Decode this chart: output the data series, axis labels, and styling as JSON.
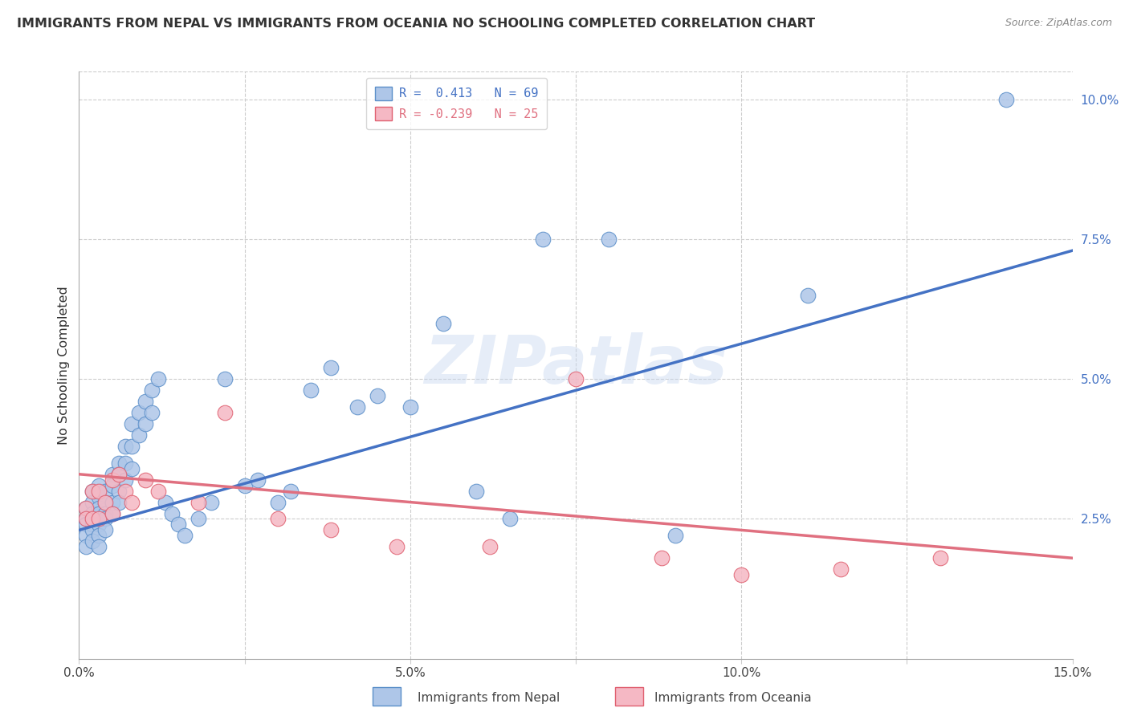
{
  "title": "IMMIGRANTS FROM NEPAL VS IMMIGRANTS FROM OCEANIA NO SCHOOLING COMPLETED CORRELATION CHART",
  "source": "Source: ZipAtlas.com",
  "xlabel_nepal": "Immigrants from Nepal",
  "xlabel_oceania": "Immigrants from Oceania",
  "ylabel": "No Schooling Completed",
  "watermark": "ZIPatlas",
  "xlim": [
    0.0,
    0.15
  ],
  "ylim": [
    0.0,
    0.105
  ],
  "xticks": [
    0.0,
    0.025,
    0.05,
    0.075,
    0.1,
    0.125,
    0.15
  ],
  "xticklabels": [
    "0.0%",
    "",
    "5.0%",
    "",
    "10.0%",
    "",
    "15.0%"
  ],
  "yticks_right": [
    0.0,
    0.025,
    0.05,
    0.075,
    0.1
  ],
  "yticklabels_right": [
    "",
    "2.5%",
    "5.0%",
    "7.5%",
    "10.0%"
  ],
  "nepal_color": "#aec6e8",
  "nepal_edge_color": "#5b8fc9",
  "oceania_color": "#f5b8c4",
  "oceania_edge_color": "#e06070",
  "nepal_line_color": "#4472c4",
  "oceania_line_color": "#e07080",
  "nepal_line_x": [
    0.0,
    0.15
  ],
  "nepal_line_y": [
    0.023,
    0.073
  ],
  "oceania_line_x": [
    0.0,
    0.15
  ],
  "oceania_line_y": [
    0.033,
    0.018
  ],
  "legend_r1": "R =  0.413   N = 69",
  "legend_r2": "R = -0.239   N = 25",
  "nepal_x": [
    0.001,
    0.001,
    0.001,
    0.001,
    0.001,
    0.002,
    0.002,
    0.002,
    0.002,
    0.002,
    0.002,
    0.002,
    0.003,
    0.003,
    0.003,
    0.003,
    0.003,
    0.003,
    0.003,
    0.004,
    0.004,
    0.004,
    0.004,
    0.004,
    0.005,
    0.005,
    0.005,
    0.005,
    0.006,
    0.006,
    0.006,
    0.006,
    0.007,
    0.007,
    0.007,
    0.008,
    0.008,
    0.008,
    0.009,
    0.009,
    0.01,
    0.01,
    0.011,
    0.011,
    0.012,
    0.013,
    0.014,
    0.015,
    0.016,
    0.018,
    0.02,
    0.022,
    0.025,
    0.027,
    0.03,
    0.032,
    0.035,
    0.038,
    0.042,
    0.045,
    0.05,
    0.055,
    0.06,
    0.065,
    0.07,
    0.08,
    0.09,
    0.11,
    0.14
  ],
  "nepal_y": [
    0.027,
    0.025,
    0.024,
    0.022,
    0.02,
    0.03,
    0.028,
    0.026,
    0.025,
    0.024,
    0.023,
    0.021,
    0.031,
    0.029,
    0.027,
    0.026,
    0.024,
    0.022,
    0.02,
    0.03,
    0.028,
    0.026,
    0.025,
    0.023,
    0.033,
    0.031,
    0.028,
    0.026,
    0.035,
    0.033,
    0.03,
    0.028,
    0.038,
    0.035,
    0.032,
    0.042,
    0.038,
    0.034,
    0.044,
    0.04,
    0.046,
    0.042,
    0.048,
    0.044,
    0.05,
    0.028,
    0.026,
    0.024,
    0.022,
    0.025,
    0.028,
    0.05,
    0.031,
    0.032,
    0.028,
    0.03,
    0.048,
    0.052,
    0.045,
    0.047,
    0.045,
    0.06,
    0.03,
    0.025,
    0.075,
    0.075,
    0.022,
    0.065,
    0.1
  ],
  "oceania_x": [
    0.001,
    0.001,
    0.002,
    0.002,
    0.003,
    0.003,
    0.004,
    0.005,
    0.005,
    0.006,
    0.007,
    0.008,
    0.01,
    0.012,
    0.018,
    0.022,
    0.03,
    0.038,
    0.048,
    0.062,
    0.075,
    0.088,
    0.1,
    0.115,
    0.13
  ],
  "oceania_y": [
    0.027,
    0.025,
    0.03,
    0.025,
    0.03,
    0.025,
    0.028,
    0.032,
    0.026,
    0.033,
    0.03,
    0.028,
    0.032,
    0.03,
    0.028,
    0.044,
    0.025,
    0.023,
    0.02,
    0.02,
    0.05,
    0.018,
    0.015,
    0.016,
    0.018
  ],
  "background_color": "#ffffff",
  "grid_color": "#cccccc"
}
